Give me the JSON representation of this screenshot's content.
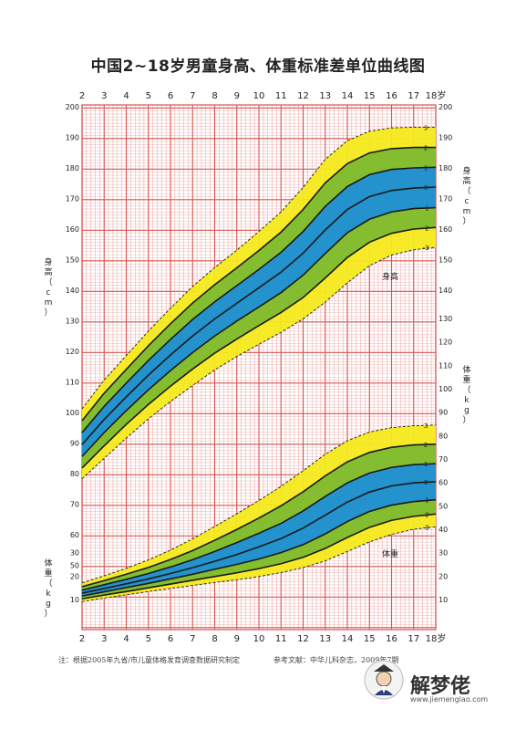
{
  "title": "中国2~18岁男童身高、体重标准差单位曲线图",
  "footnote": "注：根据2005年九省/市儿童体格发育调查数据研究制定",
  "reference": "参考文献：中华儿科杂志，2009年7期",
  "watermark": {
    "text": "解梦佬",
    "url": "www.jiemenglao.com",
    "icon": "yin-yang-sage-icon"
  },
  "colors": {
    "grid": "#d9534f",
    "yellow": "#f5ea1e",
    "green": "#7dbb2f",
    "blue": "#1e8fd6",
    "line": "#1a1a1a"
  },
  "chart_data": [
    {
      "type": "line",
      "name": "height",
      "label": "身高",
      "ylabel_left": "身高（cm）",
      "ylabel_right": "身高（cm）",
      "x_ticks": [
        "2",
        "3",
        "4",
        "5",
        "6",
        "7",
        "8",
        "9",
        "10",
        "11",
        "12",
        "13",
        "14",
        "15",
        "16",
        "17",
        "18岁"
      ],
      "ylim": [
        48,
        200
      ],
      "y_ticks_left": [
        50,
        60,
        70,
        80,
        90,
        100,
        110,
        120,
        130,
        140,
        150,
        160,
        170,
        180,
        190,
        200
      ],
      "y_ticks_right": [
        140,
        150,
        160,
        170,
        180,
        190,
        200
      ],
      "x": [
        2,
        3,
        4,
        5,
        6,
        7,
        8,
        9,
        10,
        11,
        12,
        13,
        14,
        15,
        16,
        17,
        18
      ],
      "series": [
        {
          "name": "-3",
          "values": [
            78.3,
            85.0,
            91.6,
            97.9,
            103.6,
            108.8,
            113.9,
            118.3,
            122.3,
            126.2,
            130.6,
            136.1,
            142.4,
            148.0,
            151.5,
            153.2,
            154.0
          ]
        },
        {
          "name": "-2",
          "values": [
            81.8,
            89.1,
            96.1,
            102.6,
            108.6,
            114.2,
            119.4,
            124.0,
            128.4,
            132.7,
            137.6,
            144.0,
            150.7,
            155.7,
            158.6,
            160.0,
            160.5
          ]
        },
        {
          "name": "-1",
          "values": [
            85.6,
            93.4,
            100.6,
            107.4,
            113.7,
            119.6,
            125.0,
            129.9,
            134.5,
            139.2,
            144.9,
            152.0,
            158.8,
            163.2,
            165.6,
            166.7,
            167.0
          ]
        },
        {
          "name": "0",
          "values": [
            89.5,
            97.7,
            105.1,
            112.2,
            118.8,
            125.0,
            130.6,
            135.7,
            140.8,
            145.9,
            152.1,
            159.7,
            166.4,
            170.6,
            172.6,
            173.4,
            173.7
          ]
        },
        {
          "name": "1",
          "values": [
            93.4,
            102.0,
            109.6,
            117.0,
            123.9,
            130.4,
            136.2,
            141.5,
            146.8,
            152.4,
            159.2,
            167.4,
            173.9,
            177.8,
            179.5,
            180.0,
            180.2
          ]
        },
        {
          "name": "2",
          "values": [
            97.3,
            106.3,
            114.1,
            121.8,
            129.0,
            135.8,
            141.8,
            147.3,
            153.0,
            159.0,
            166.4,
            175.1,
            181.4,
            184.9,
            186.3,
            186.7,
            186.7
          ]
        },
        {
          "name": "3",
          "values": [
            101.2,
            110.6,
            118.6,
            126.6,
            134.1,
            141.2,
            147.4,
            153.1,
            159.2,
            165.6,
            173.6,
            182.8,
            188.9,
            192.0,
            193.1,
            193.3,
            193.3
          ]
        }
      ]
    },
    {
      "type": "line",
      "name": "weight",
      "label": "体重",
      "ylabel_left": "体重（kg）",
      "ylabel_right": "体重（kg）",
      "x_ticks": [
        "2",
        "3",
        "4",
        "5",
        "6",
        "7",
        "8",
        "9",
        "10",
        "11",
        "12",
        "13",
        "14",
        "15",
        "16",
        "17",
        "18岁"
      ],
      "ylim": [
        5,
        135
      ],
      "y_ticks_left": [
        10,
        20,
        30
      ],
      "y_ticks_right": [
        10,
        20,
        30,
        40,
        50,
        60,
        70,
        80,
        90,
        100,
        110,
        120,
        130
      ],
      "x": [
        2,
        3,
        4,
        5,
        6,
        7,
        8,
        9,
        10,
        11,
        12,
        13,
        14,
        15,
        16,
        17,
        18
      ],
      "series": [
        {
          "name": "-3",
          "values": [
            9.1,
            10.6,
            12.0,
            13.4,
            14.7,
            16.0,
            17.3,
            18.4,
            19.8,
            21.5,
            23.6,
            26.5,
            30.5,
            34.6,
            37.8,
            40.0,
            41.0
          ]
        },
        {
          "name": "-2",
          "values": [
            10.3,
            11.9,
            13.4,
            15.0,
            16.6,
            18.2,
            19.8,
            21.4,
            23.2,
            25.3,
            28.0,
            31.8,
            36.5,
            40.8,
            43.8,
            45.5,
            46.5
          ]
        },
        {
          "name": "-1",
          "values": [
            11.5,
            13.3,
            15.1,
            16.9,
            18.8,
            20.8,
            22.9,
            25.0,
            27.3,
            30.0,
            33.4,
            38.0,
            43.3,
            47.6,
            50.3,
            51.8,
            52.6
          ]
        },
        {
          "name": "0",
          "values": [
            12.7,
            14.7,
            16.7,
            18.8,
            21.1,
            23.6,
            26.3,
            29.2,
            32.5,
            36.0,
            40.5,
            46.0,
            51.6,
            55.9,
            58.5,
            59.8,
            60.3
          ]
        },
        {
          "name": "1",
          "values": [
            14.0,
            16.3,
            18.6,
            21.1,
            23.9,
            27.0,
            30.5,
            34.3,
            38.3,
            42.5,
            47.8,
            54.0,
            59.8,
            64.0,
            66.4,
            67.6,
            68.0
          ]
        },
        {
          "name": "2",
          "values": [
            15.5,
            18.1,
            20.8,
            23.7,
            27.1,
            30.9,
            35.3,
            39.9,
            44.8,
            50.0,
            56.0,
            62.8,
            68.8,
            72.8,
            75.0,
            76.0,
            76.3
          ]
        },
        {
          "name": "3",
          "values": [
            17.1,
            20.1,
            23.3,
            26.9,
            31.1,
            35.9,
            41.2,
            46.6,
            52.3,
            58.3,
            65.0,
            72.0,
            77.8,
            81.5,
            83.4,
            84.2,
            84.5
          ]
        }
      ]
    }
  ]
}
